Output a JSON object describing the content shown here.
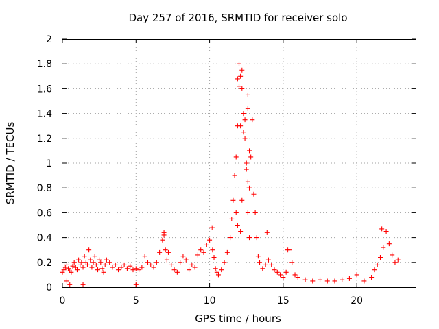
{
  "chart_data": {
    "type": "scatter",
    "title": "Day 257 of 2016, SRMTID for receiver solo",
    "xlabel": "GPS time / hours",
    "ylabel": "SRMTID / TECUs",
    "xlim": [
      0,
      24
    ],
    "ylim": [
      0,
      2
    ],
    "xticks": [
      "0",
      "5",
      "10",
      "15",
      "20"
    ],
    "yticks": [
      "0",
      "0.2",
      "0.4",
      "0.6",
      "0.8",
      "1",
      "1.2",
      "1.4",
      "1.6",
      "1.8",
      "2"
    ],
    "grid": true,
    "marker": "+",
    "color": "#ff0000",
    "series": [
      {
        "name": "SRMTID",
        "x": [
          0.0,
          0.1,
          0.2,
          0.3,
          0.4,
          0.5,
          0.6,
          0.7,
          0.8,
          0.9,
          1.0,
          1.1,
          1.2,
          1.3,
          1.4,
          1.5,
          1.6,
          1.7,
          1.8,
          1.9,
          2.0,
          2.1,
          2.2,
          2.3,
          2.4,
          2.5,
          2.6,
          2.7,
          2.8,
          2.9,
          3.0,
          3.2,
          3.4,
          3.6,
          3.8,
          4.0,
          4.2,
          4.4,
          4.6,
          4.8,
          5.0,
          5.2,
          5.4,
          5.6,
          5.8,
          6.0,
          6.2,
          6.4,
          6.6,
          6.8,
          6.9,
          7.0,
          7.1,
          7.2,
          7.4,
          7.6,
          7.8,
          8.0,
          8.2,
          8.4,
          8.6,
          8.8,
          9.0,
          9.2,
          9.4,
          9.6,
          9.8,
          10.0,
          10.1,
          10.2,
          10.3,
          10.4,
          10.5,
          10.6,
          10.8,
          11.0,
          11.2,
          11.4,
          11.5,
          11.6,
          11.7,
          11.8,
          11.9,
          12.0,
          12.1,
          12.2,
          12.3,
          12.4,
          12.5,
          12.6,
          12.7,
          12.8,
          12.9,
          13.0,
          13.1,
          13.2,
          13.3,
          13.4,
          13.6,
          13.8,
          14.0,
          14.2,
          14.4,
          14.6,
          14.8,
          15.0,
          15.2,
          15.4,
          15.6,
          15.8,
          16.0,
          16.5,
          17.0,
          17.5,
          18.0,
          18.5,
          19.0,
          19.5,
          20.0,
          20.5,
          21.0,
          21.2,
          21.4,
          21.6,
          21.8,
          22.0,
          22.2,
          22.4,
          22.6,
          22.8,
          0.3,
          0.5,
          1.4,
          5.0,
          11.9,
          12.0,
          12.1,
          12.2,
          12.3,
          12.6,
          12.7,
          12.6,
          12.5,
          12.4,
          11.8,
          11.9,
          12.2,
          12.1,
          12.6,
          12.7,
          10.2,
          6.9,
          15.3,
          21.7,
          13.9
        ],
        "y": [
          0.12,
          0.14,
          0.16,
          0.18,
          0.15,
          0.13,
          0.12,
          0.17,
          0.2,
          0.16,
          0.14,
          0.22,
          0.18,
          0.2,
          0.16,
          0.25,
          0.2,
          0.18,
          0.3,
          0.22,
          0.16,
          0.2,
          0.25,
          0.18,
          0.14,
          0.22,
          0.2,
          0.15,
          0.12,
          0.18,
          0.22,
          0.2,
          0.16,
          0.18,
          0.14,
          0.16,
          0.18,
          0.15,
          0.17,
          0.14,
          0.15,
          0.14,
          0.16,
          0.25,
          0.2,
          0.18,
          0.16,
          0.2,
          0.28,
          0.38,
          0.44,
          0.3,
          0.22,
          0.28,
          0.18,
          0.14,
          0.12,
          0.2,
          0.25,
          0.22,
          0.14,
          0.18,
          0.16,
          0.26,
          0.3,
          0.28,
          0.34,
          0.38,
          0.48,
          0.3,
          0.24,
          0.15,
          0.12,
          0.1,
          0.14,
          0.2,
          0.28,
          0.4,
          0.55,
          0.7,
          0.9,
          1.05,
          1.3,
          1.8,
          1.7,
          1.75,
          1.4,
          1.2,
          1.0,
          0.85,
          0.8,
          1.05,
          1.35,
          0.75,
          0.6,
          0.4,
          0.25,
          0.2,
          0.15,
          0.18,
          0.22,
          0.18,
          0.14,
          0.12,
          0.1,
          0.08,
          0.12,
          0.3,
          0.2,
          0.1,
          0.08,
          0.06,
          0.05,
          0.06,
          0.05,
          0.05,
          0.06,
          0.07,
          0.1,
          0.05,
          0.08,
          0.14,
          0.18,
          0.24,
          0.32,
          0.45,
          0.35,
          0.26,
          0.2,
          0.22,
          0.05,
          0.02,
          0.02,
          0.02,
          1.68,
          1.62,
          1.3,
          1.6,
          1.25,
          1.55,
          1.1,
          1.44,
          0.95,
          1.35,
          0.6,
          0.5,
          0.7,
          0.45,
          0.6,
          0.4,
          0.48,
          0.42,
          0.3,
          0.47,
          0.44
        ]
      }
    ]
  }
}
